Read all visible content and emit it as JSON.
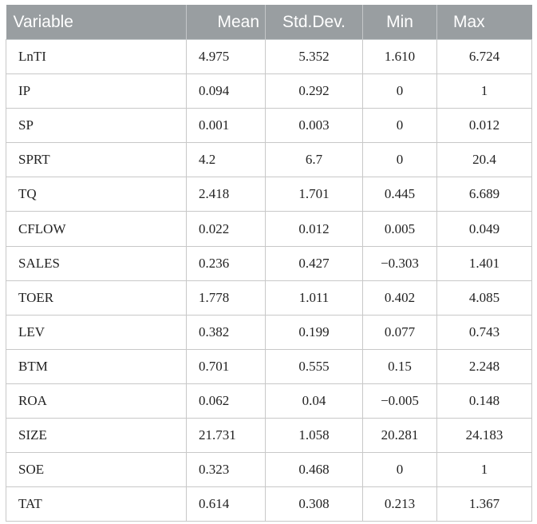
{
  "table": {
    "headers": [
      "Variable",
      "Mean",
      "Std.Dev.",
      "Min",
      "Max"
    ],
    "rows": [
      [
        "LnTI",
        "4.975",
        "5.352",
        "1.610",
        "6.724"
      ],
      [
        "IP",
        "0.094",
        "0.292",
        "0",
        "1"
      ],
      [
        "SP",
        "0.001",
        "0.003",
        "0",
        "0.012"
      ],
      [
        "SPRT",
        "4.2",
        "6.7",
        "0",
        "20.4"
      ],
      [
        "TQ",
        "2.418",
        "1.701",
        "0.445",
        "6.689"
      ],
      [
        "CFLOW",
        "0.022",
        "0.012",
        "0.005",
        "0.049"
      ],
      [
        "SALES",
        "0.236",
        "0.427",
        "−0.303",
        "1.401"
      ],
      [
        "TOER",
        "1.778",
        "1.011",
        "0.402",
        "4.085"
      ],
      [
        "LEV",
        "0.382",
        "0.199",
        "0.077",
        "0.743"
      ],
      [
        "BTM",
        "0.701",
        "0.555",
        "0.15",
        "2.248"
      ],
      [
        "ROA",
        "0.062",
        "0.04",
        "−0.005",
        "0.148"
      ],
      [
        "SIZE",
        "21.731",
        "1.058",
        "20.281",
        "24.183"
      ],
      [
        "SOE",
        "0.323",
        "0.468",
        "0",
        "1"
      ],
      [
        "TAT",
        "0.614",
        "0.308",
        "0.213",
        "1.367"
      ]
    ]
  },
  "colors": {
    "header_background": "#999ea1",
    "header_text": "#ffffff",
    "grid_line": "#c8c8c8"
  }
}
